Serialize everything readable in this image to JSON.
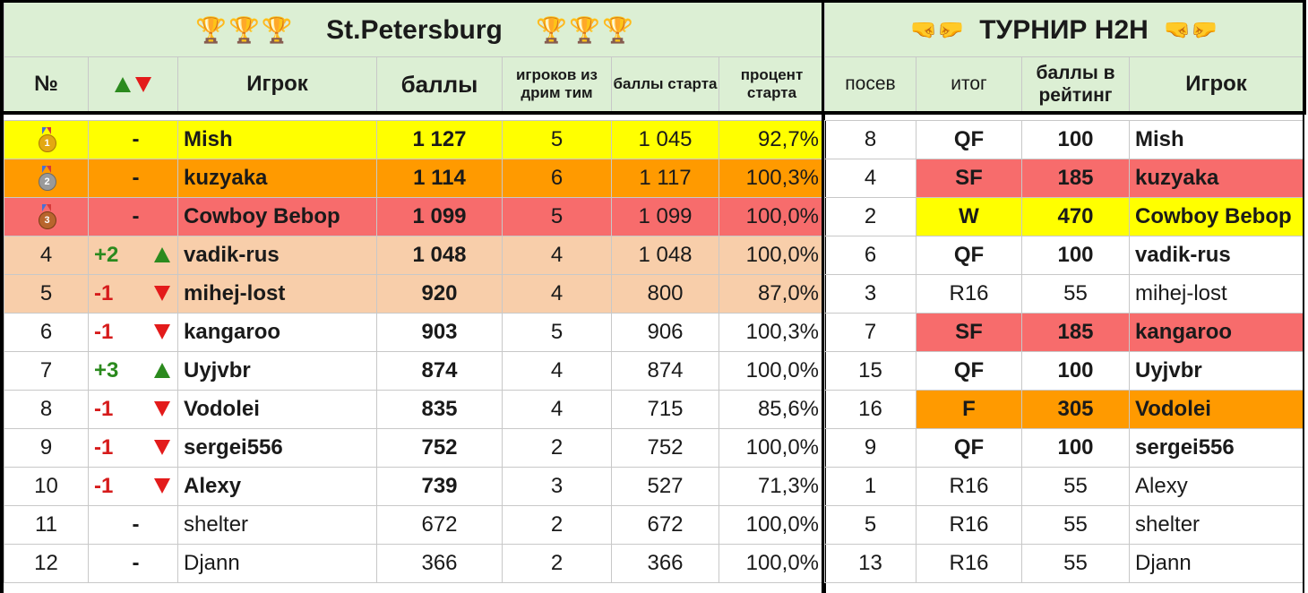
{
  "left_table": {
    "title": "St.Petersburg",
    "title_icons": [
      "trophy-icon",
      "trophy-icon",
      "trophy-icon"
    ],
    "headers": {
      "rank": "№",
      "change": "▲▼",
      "player": "Игрок",
      "points": "баллы",
      "dream_team": "игроков из дрим тим",
      "start_points": "баллы старта",
      "start_percent": "процент старта"
    },
    "rows": [
      {
        "rank": "1",
        "change": "-",
        "player": "Mish",
        "points": "1 127",
        "dream_team": "5",
        "start_points": "1 045",
        "start_percent": "92,7%",
        "medal": "gold"
      },
      {
        "rank": "2",
        "change": "-",
        "player": "kuzyaka",
        "points": "1 114",
        "dream_team": "6",
        "start_points": "1 117",
        "start_percent": "100,3%",
        "medal": "silver"
      },
      {
        "rank": "3",
        "change": "-",
        "player": "Cowboy Bebop",
        "points": "1 099",
        "dream_team": "5",
        "start_points": "1 099",
        "start_percent": "100,0%",
        "medal": "bronze"
      },
      {
        "rank": "4",
        "change": "+2",
        "player": "vadik-rus",
        "points": "1 048",
        "dream_team": "4",
        "start_points": "1 048",
        "start_percent": "100,0%"
      },
      {
        "rank": "5",
        "change": "-1",
        "player": "mihej-lost",
        "points": "920",
        "dream_team": "4",
        "start_points": "800",
        "start_percent": "87,0%"
      },
      {
        "rank": "6",
        "change": "-1",
        "player": "kangaroo",
        "points": "903",
        "dream_team": "5",
        "start_points": "906",
        "start_percent": "100,3%"
      },
      {
        "rank": "7",
        "change": "+3",
        "player": "Uyjvbr",
        "points": "874",
        "dream_team": "4",
        "start_points": "874",
        "start_percent": "100,0%"
      },
      {
        "rank": "8",
        "change": "-1",
        "player": "Vodolei",
        "points": "835",
        "dream_team": "4",
        "start_points": "715",
        "start_percent": "85,6%"
      },
      {
        "rank": "9",
        "change": "-1",
        "player": "sergei556",
        "points": "752",
        "dream_team": "2",
        "start_points": "752",
        "start_percent": "100,0%"
      },
      {
        "rank": "10",
        "change": "-1",
        "player": "Alexy",
        "points": "739",
        "dream_team": "3",
        "start_points": "527",
        "start_percent": "71,3%"
      },
      {
        "rank": "11",
        "change": "-",
        "player": "shelter",
        "points": "672",
        "dream_team": "2",
        "start_points": "672",
        "start_percent": "100,0%"
      },
      {
        "rank": "12",
        "change": "-",
        "player": "Djann",
        "points": "366",
        "dream_team": "2",
        "start_points": "366",
        "start_percent": "100,0%"
      }
    ]
  },
  "right_table": {
    "title": "ТУРНИР H2H",
    "title_icons": [
      "fist-bump-icon",
      "fist-bump-icon"
    ],
    "headers": {
      "seed": "посев",
      "result": "итог",
      "rating_points": "баллы в рейтинг",
      "player": "Игрок"
    },
    "rows": [
      {
        "seed": "8",
        "result": "QF",
        "rating_points": "100",
        "player": "Mish"
      },
      {
        "seed": "4",
        "result": "SF",
        "rating_points": "185",
        "player": "kuzyaka"
      },
      {
        "seed": "2",
        "result": "W",
        "rating_points": "470",
        "player": "Cowboy Bebop"
      },
      {
        "seed": "6",
        "result": "QF",
        "rating_points": "100",
        "player": "vadik-rus"
      },
      {
        "seed": "3",
        "result": "R16",
        "rating_points": "55",
        "player": "mihej-lost"
      },
      {
        "seed": "7",
        "result": "SF",
        "rating_points": "185",
        "player": "kangaroo"
      },
      {
        "seed": "15",
        "result": "QF",
        "rating_points": "100",
        "player": "Uyjvbr"
      },
      {
        "seed": "16",
        "result": "F",
        "rating_points": "305",
        "player": "Vodolei"
      },
      {
        "seed": "9",
        "result": "QF",
        "rating_points": "100",
        "player": "sergei556"
      },
      {
        "seed": "1",
        "result": "R16",
        "rating_points": "55",
        "player": "Alexy"
      },
      {
        "seed": "5",
        "result": "R16",
        "rating_points": "55",
        "player": "shelter"
      },
      {
        "seed": "13",
        "result": "R16",
        "rating_points": "55",
        "player": "Djann"
      }
    ]
  },
  "colors": {
    "header_bg": "#dcefd4",
    "yellow": "#ffff00",
    "orange": "#ff9a00",
    "red": "#f76c6c",
    "peach": "#f8ceaa",
    "up": "#2b8a1e",
    "down": "#d61b1b"
  }
}
